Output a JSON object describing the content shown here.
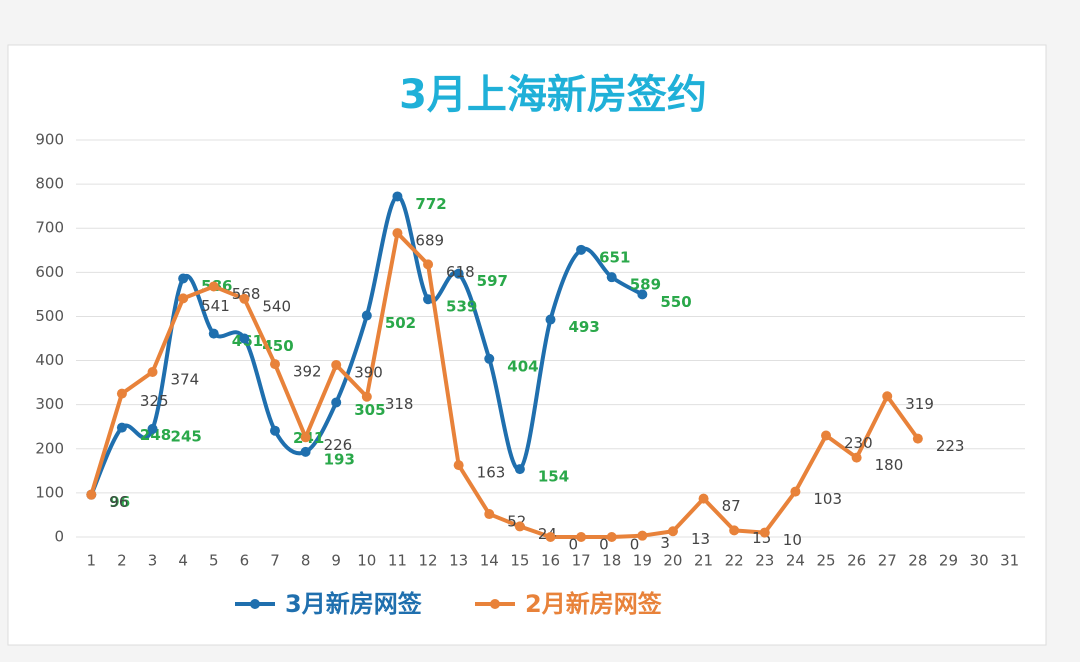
{
  "chart_data": {
    "type": "line",
    "title": "3月上海新房签约",
    "categories": [
      "1",
      "2",
      "3",
      "4",
      "5",
      "6",
      "7",
      "8",
      "9",
      "10",
      "11",
      "12",
      "13",
      "14",
      "15",
      "16",
      "17",
      "18",
      "19",
      "20",
      "21",
      "22",
      "23",
      "24",
      "25",
      "26",
      "27",
      "28",
      "29",
      "30",
      "31"
    ],
    "series": [
      {
        "name": "3月新房网签",
        "color": "#1f6fae",
        "label_color": "#2aa84a",
        "smooth": true,
        "values": [
          96,
          248,
          245,
          586,
          461,
          450,
          241,
          193,
          305,
          502,
          772,
          539,
          597,
          404,
          154,
          493,
          651,
          589,
          550,
          null,
          null,
          null,
          null,
          null,
          null,
          null,
          null,
          null,
          null,
          null,
          null
        ]
      },
      {
        "name": "2月新房网签",
        "color": "#e8823a",
        "label_color": "#444444",
        "smooth": false,
        "values": [
          96,
          325,
          374,
          541,
          568,
          540,
          392,
          226,
          390,
          318,
          689,
          618,
          163,
          52,
          24,
          0,
          0,
          0,
          3,
          13,
          87,
          15,
          10,
          103,
          230,
          180,
          319,
          223,
          null,
          null,
          null
        ]
      }
    ],
    "ylim": [
      0,
      900
    ],
    "yticks": [
      0,
      100,
      200,
      300,
      400,
      500,
      600,
      700,
      800,
      900
    ],
    "grid": true,
    "legend": "bottom"
  }
}
